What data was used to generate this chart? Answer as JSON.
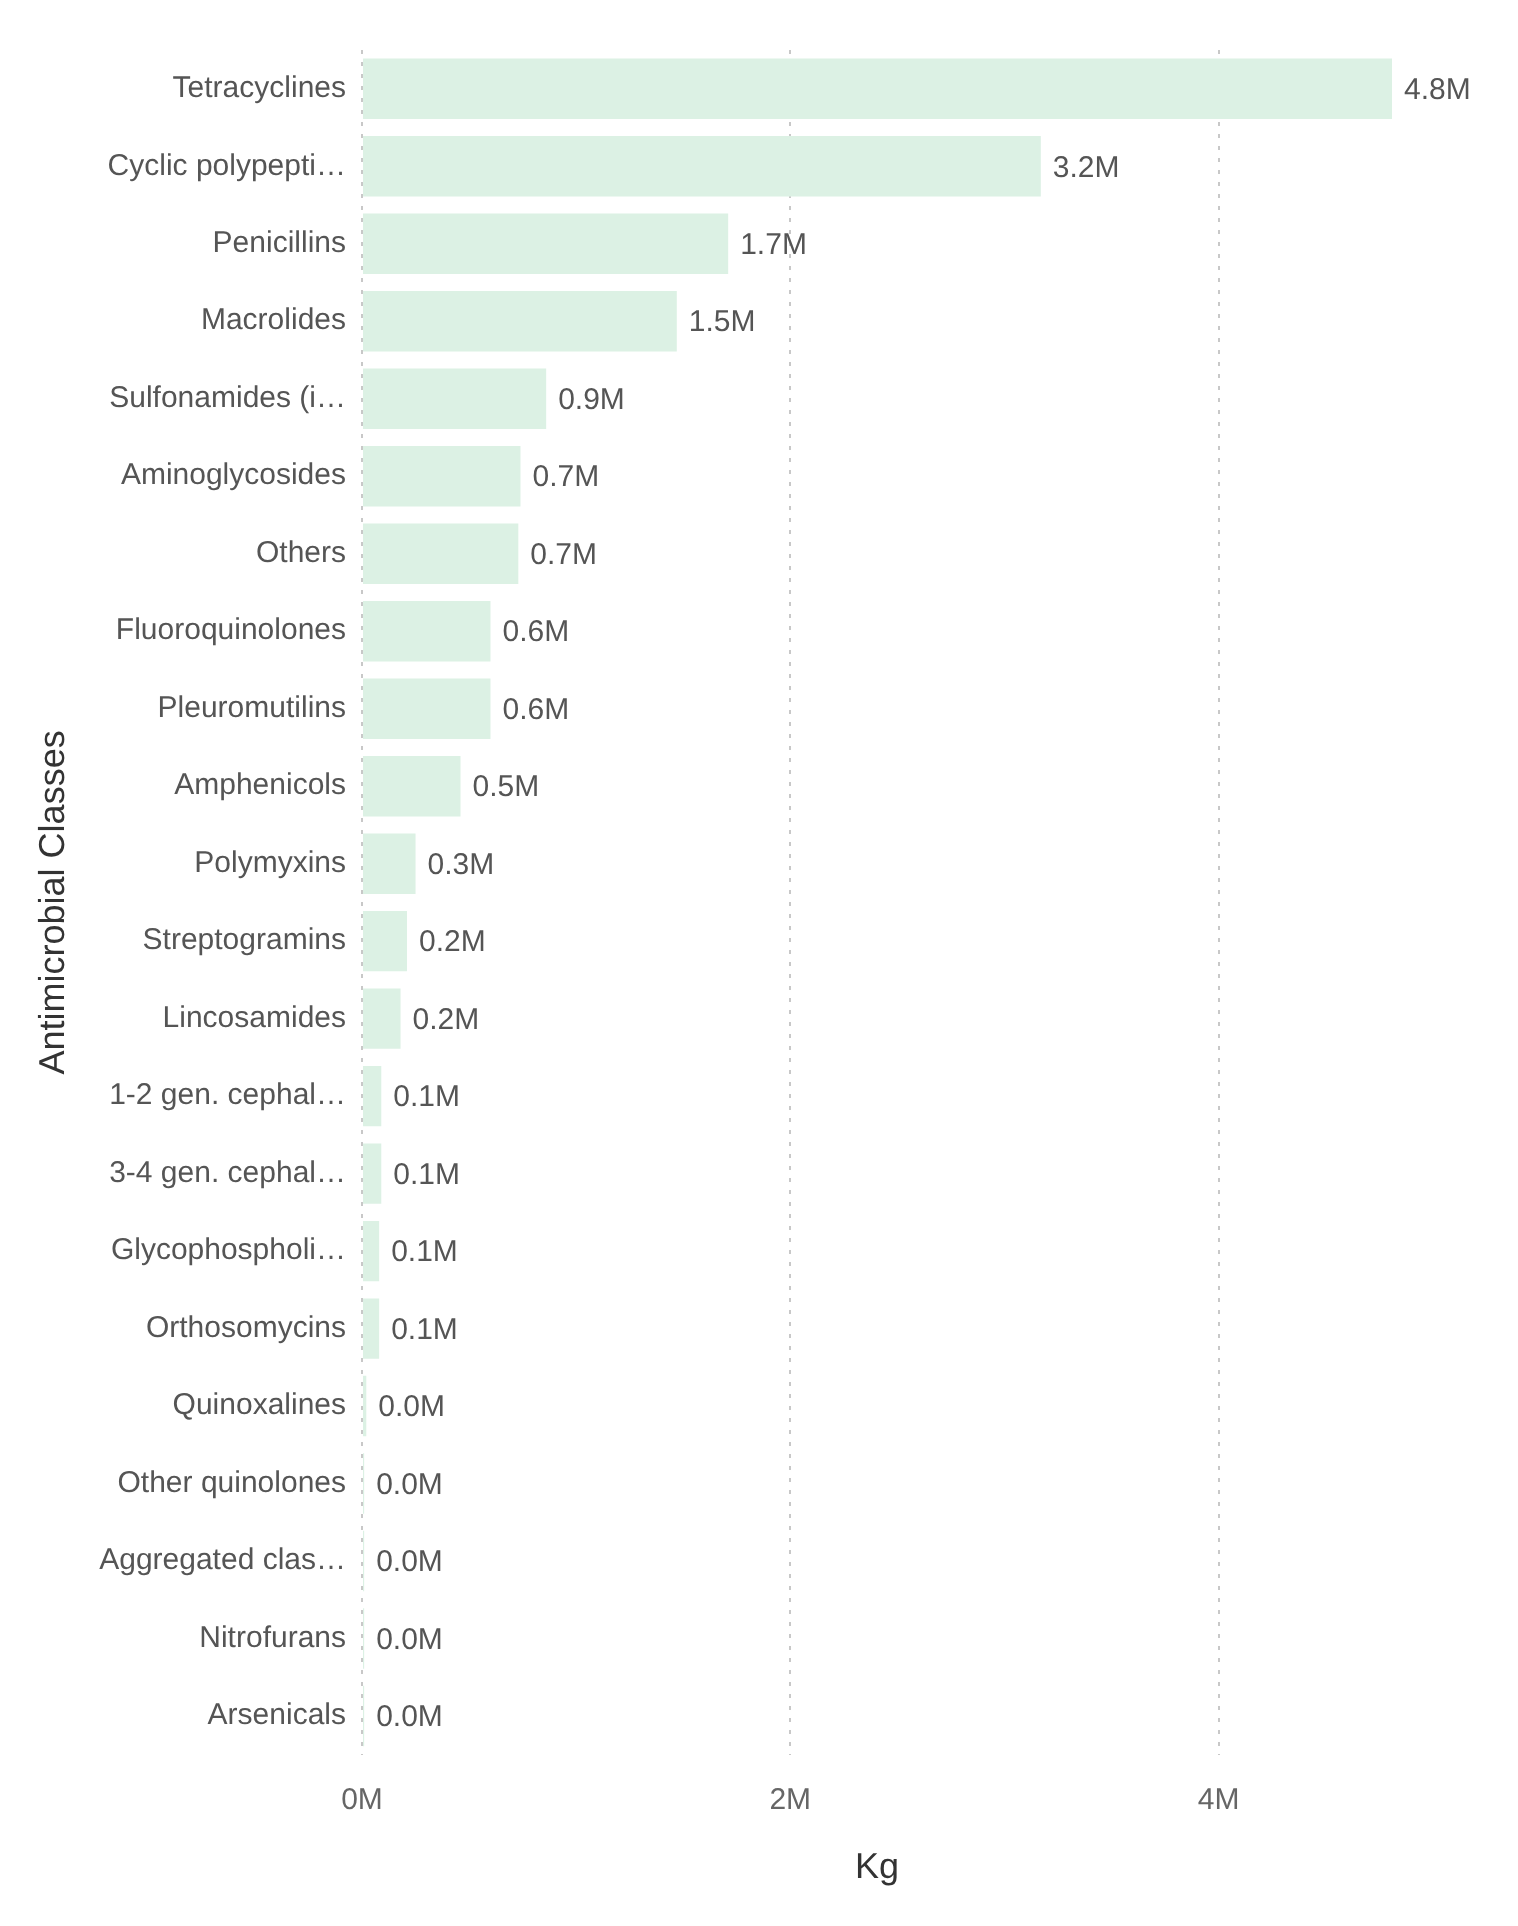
{
  "chart_data": {
    "type": "bar",
    "orientation": "horizontal",
    "xlabel": "Kg",
    "ylabel": "Antimicrobial Classes",
    "categories": [
      "Tetracyclines",
      "Cyclic polypepti…",
      "Penicillins",
      "Macrolides",
      "Sulfonamides (i…",
      "Aminoglycosides",
      "Others",
      "Fluoroquinolones",
      "Pleuromutilins",
      "Amphenicols",
      "Polymyxins",
      "Streptogramins",
      "Lincosamides",
      "1-2 gen. cephal…",
      "3-4 gen. cephal…",
      "Glycophospholi…",
      "Orthosomycins",
      "Quinoxalines",
      "Other quinolones",
      "Aggregated clas…",
      "Nitrofurans",
      "Arsenicals"
    ],
    "values": [
      4810000,
      3170000,
      1710000,
      1470000,
      860000,
      740000,
      730000,
      600000,
      600000,
      460000,
      250000,
      210000,
      180000,
      90000,
      90000,
      80000,
      80000,
      20000,
      10000,
      10000,
      10000,
      10000
    ],
    "value_labels": [
      "4.8M",
      "3.2M",
      "1.7M",
      "1.5M",
      "0.9M",
      "0.7M",
      "0.7M",
      "0.6M",
      "0.6M",
      "0.5M",
      "0.3M",
      "0.2M",
      "0.2M",
      "0.1M",
      "0.1M",
      "0.1M",
      "0.1M",
      "0.0M",
      "0.0M",
      "0.0M",
      "0.0M",
      "0.0M"
    ],
    "color": "#dcf1e4",
    "xlim": [
      0,
      4810000
    ],
    "xticks": [
      {
        "value": 0,
        "label": "0M"
      },
      {
        "value": 2000000,
        "label": "2M"
      },
      {
        "value": 4000000,
        "label": "4M"
      }
    ],
    "grid": "x"
  }
}
